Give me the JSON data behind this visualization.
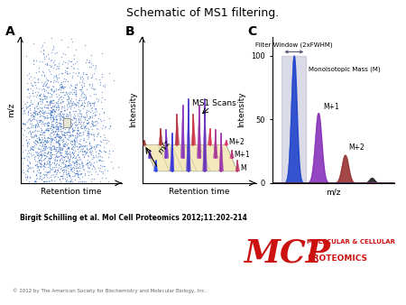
{
  "title": "Schematic of MS1 filtering.",
  "title_fontsize": 9,
  "background_color": "#ffffff",
  "citation": "Birgit Schilling et al. Mol Cell Proteomics 2012;11:202-214",
  "copyright": "© 2012 by The American Society for Biochemistry and Molecular Biology, Inc.",
  "mcp_text": "MCP",
  "mcp_sub1": "MOLECULAR & CELLULAR",
  "mcp_sub2": "PROTEOMICS",
  "panel_A_label": "A",
  "panel_B_label": "B",
  "panel_C_label": "C",
  "panel_A_xlabel": "Retention time",
  "panel_A_ylabel": "m/z",
  "panel_B_xlabel": "Retention time",
  "panel_B_ylabel": "Intensity",
  "panel_B_annotation": "MS1 Scans",
  "panel_B_mz_label": "m/z",
  "panel_B_M_label": "M",
  "panel_B_M1_label": "M+1",
  "panel_B_M2_label": "M+2",
  "panel_C_xlabel": "m/z",
  "panel_C_ylabel": "Intensity",
  "panel_C_filter_label": "Filter Window (2xFWHM)",
  "panel_C_mono_label": "Monoisotopic Mass (M)",
  "panel_C_M1_label": "M+1",
  "panel_C_M2_label": "M+2",
  "panel_C_yticks": [
    0,
    50,
    100
  ],
  "scatter_color": "#1a55bb",
  "floor_color": "#f0e0a0",
  "floor_line_color": "#888866",
  "filter_window_color": "#9999bb",
  "ms1_scan_colors": [
    "#2244ee",
    "#4433dd",
    "#6633cc",
    "#9933aa",
    "#cc3366",
    "#cc3333"
  ],
  "peak_colors_C": [
    "#2244cc",
    "#8833bb",
    "#993333",
    "#222222"
  ],
  "highlight_rect_color": "#e8e8d0"
}
